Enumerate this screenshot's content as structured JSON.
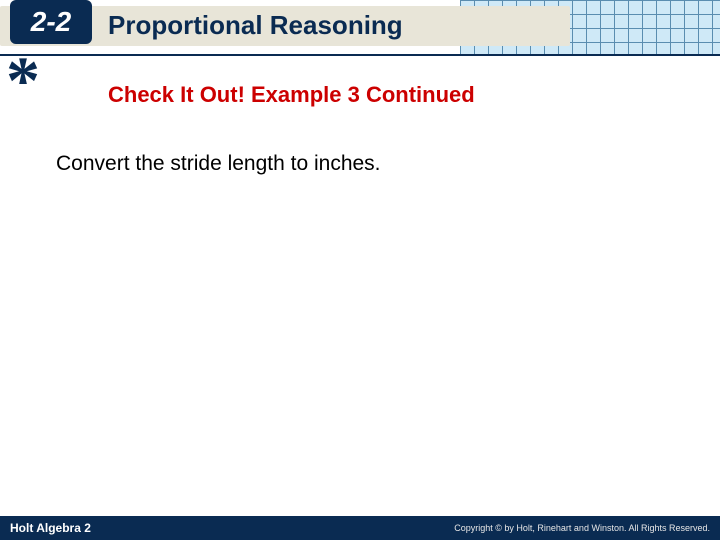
{
  "header": {
    "section_number": "2-2",
    "title": "Proportional Reasoning",
    "grid_color_line": "#5a8db0",
    "grid_color_bg": "#cfe9f7",
    "titlebar_bg": "#e8e5d8",
    "section_bg": "#0a2b52",
    "title_color": "#0a2b52"
  },
  "asterisk": {
    "glyph": "*",
    "color": "#0a2b52"
  },
  "subtitle": {
    "text": "Check It Out! Example 3 Continued",
    "color": "#cc0000"
  },
  "body": {
    "text": "Convert the stride length to inches.",
    "color": "#000000"
  },
  "footer": {
    "left": "Holt Algebra 2",
    "right": "Copyright © by Holt, Rinehart and Winston. All Rights Reserved.",
    "bg": "#0a2b52",
    "text_color": "#ffffff"
  }
}
